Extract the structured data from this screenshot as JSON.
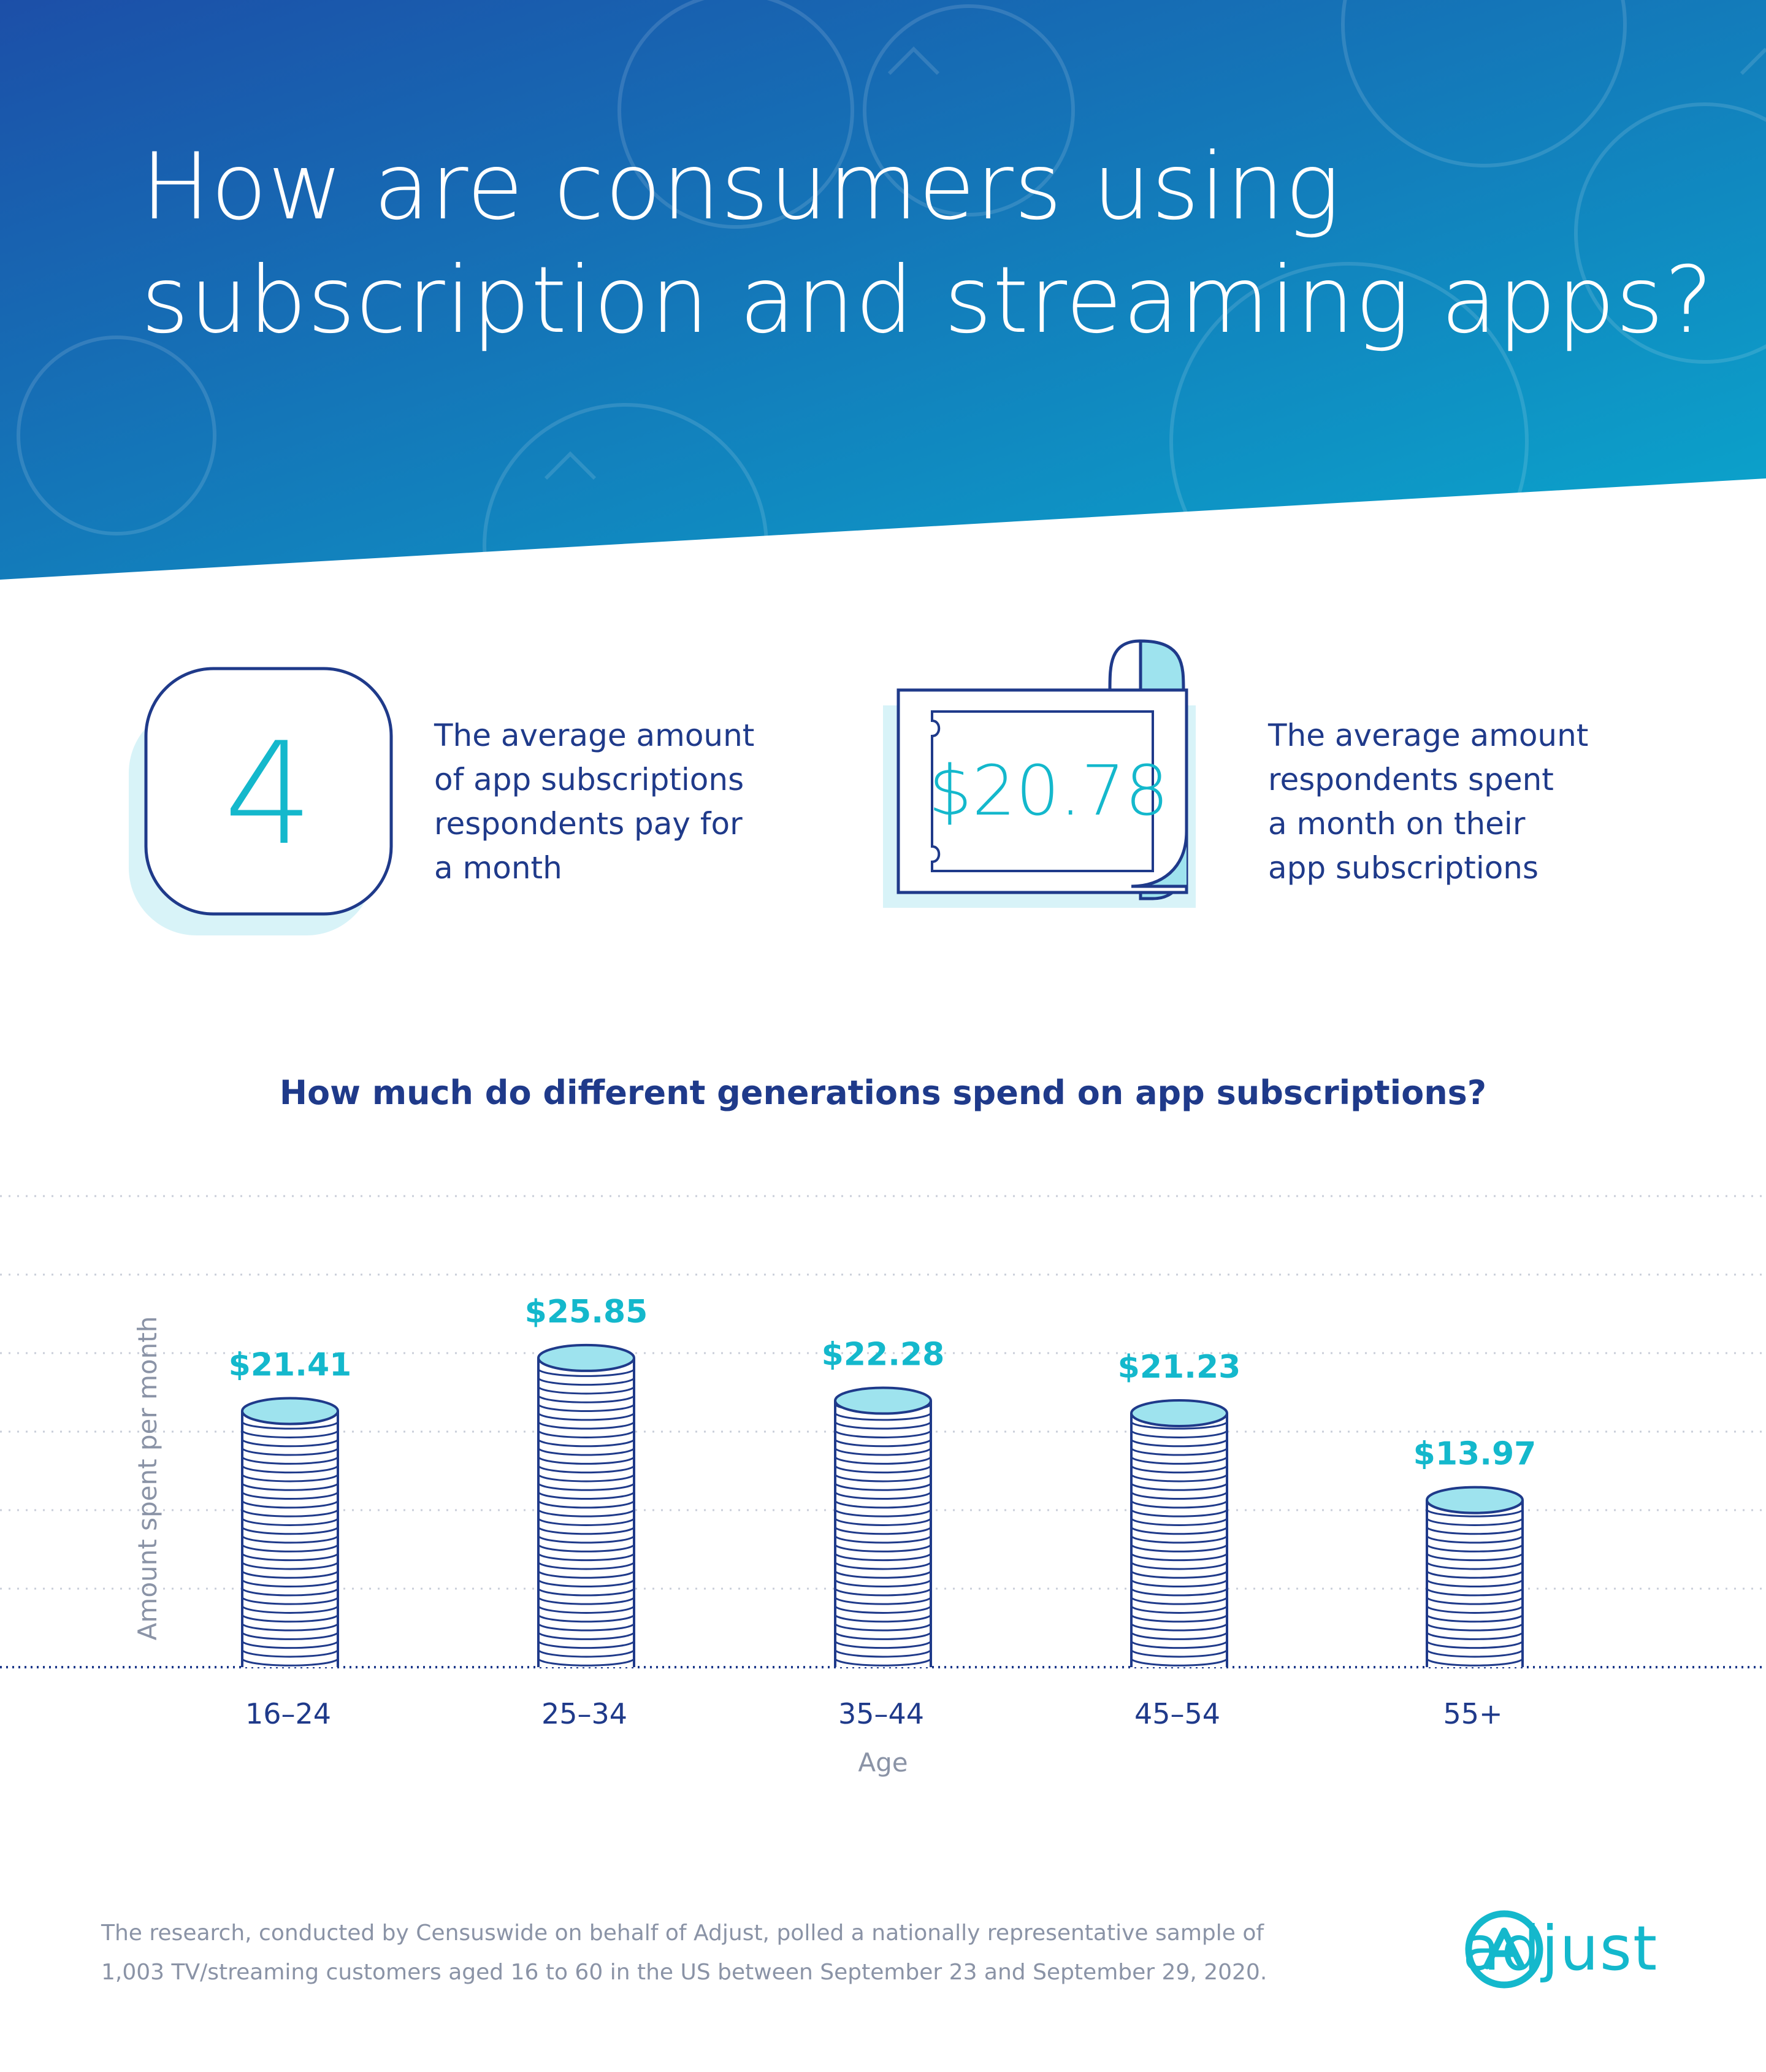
{
  "header": {
    "title_line1": "How are consumers using",
    "title_line2": "subscription and streaming apps?",
    "gradient_colors": [
      "#1c4fa8",
      "#0aa8cd"
    ]
  },
  "stats": [
    {
      "value": "4",
      "icon": "app-icon-square",
      "desc_lines": [
        "The average amount",
        "of app subscriptions",
        "respondents pay for",
        "a month"
      ]
    },
    {
      "value": "$20.78",
      "icon": "bill-icon",
      "desc_lines": [
        "The average amount",
        "respondents spent",
        "a month on their",
        "app subscriptions"
      ]
    }
  ],
  "chart_data": {
    "type": "bar",
    "title": "How much do different generations spend on app subscriptions?",
    "xlabel": "Age",
    "ylabel": "Amount spent per month",
    "categories": [
      "16–24",
      "25–34",
      "35–44",
      "45–54",
      "55+"
    ],
    "values": [
      21.41,
      25.85,
      22.28,
      21.23,
      13.97
    ],
    "value_labels": [
      "$21.41",
      "$25.85",
      "$22.28",
      "$21.23",
      "$13.97"
    ],
    "ylim": [
      0,
      30
    ],
    "grid": true,
    "mark_style": "coin-stacks"
  },
  "footnote": {
    "line1": "The research, conducted by Censuswide on behalf of Adjust, polled a nationally representative sample of",
    "line2": "1,003 TV/streaming customers aged 16 to 60 in the US between September 23 and September 29, 2020."
  },
  "logo": {
    "text": "adjust",
    "icon": "adjust-logo-icon"
  },
  "colors": {
    "navy": "#1f3a8a",
    "cyan": "#14b8cc",
    "light_cyan": "#9ee3ee",
    "pale_cyan": "#d8f3f8",
    "grey": "#8a93a6"
  }
}
